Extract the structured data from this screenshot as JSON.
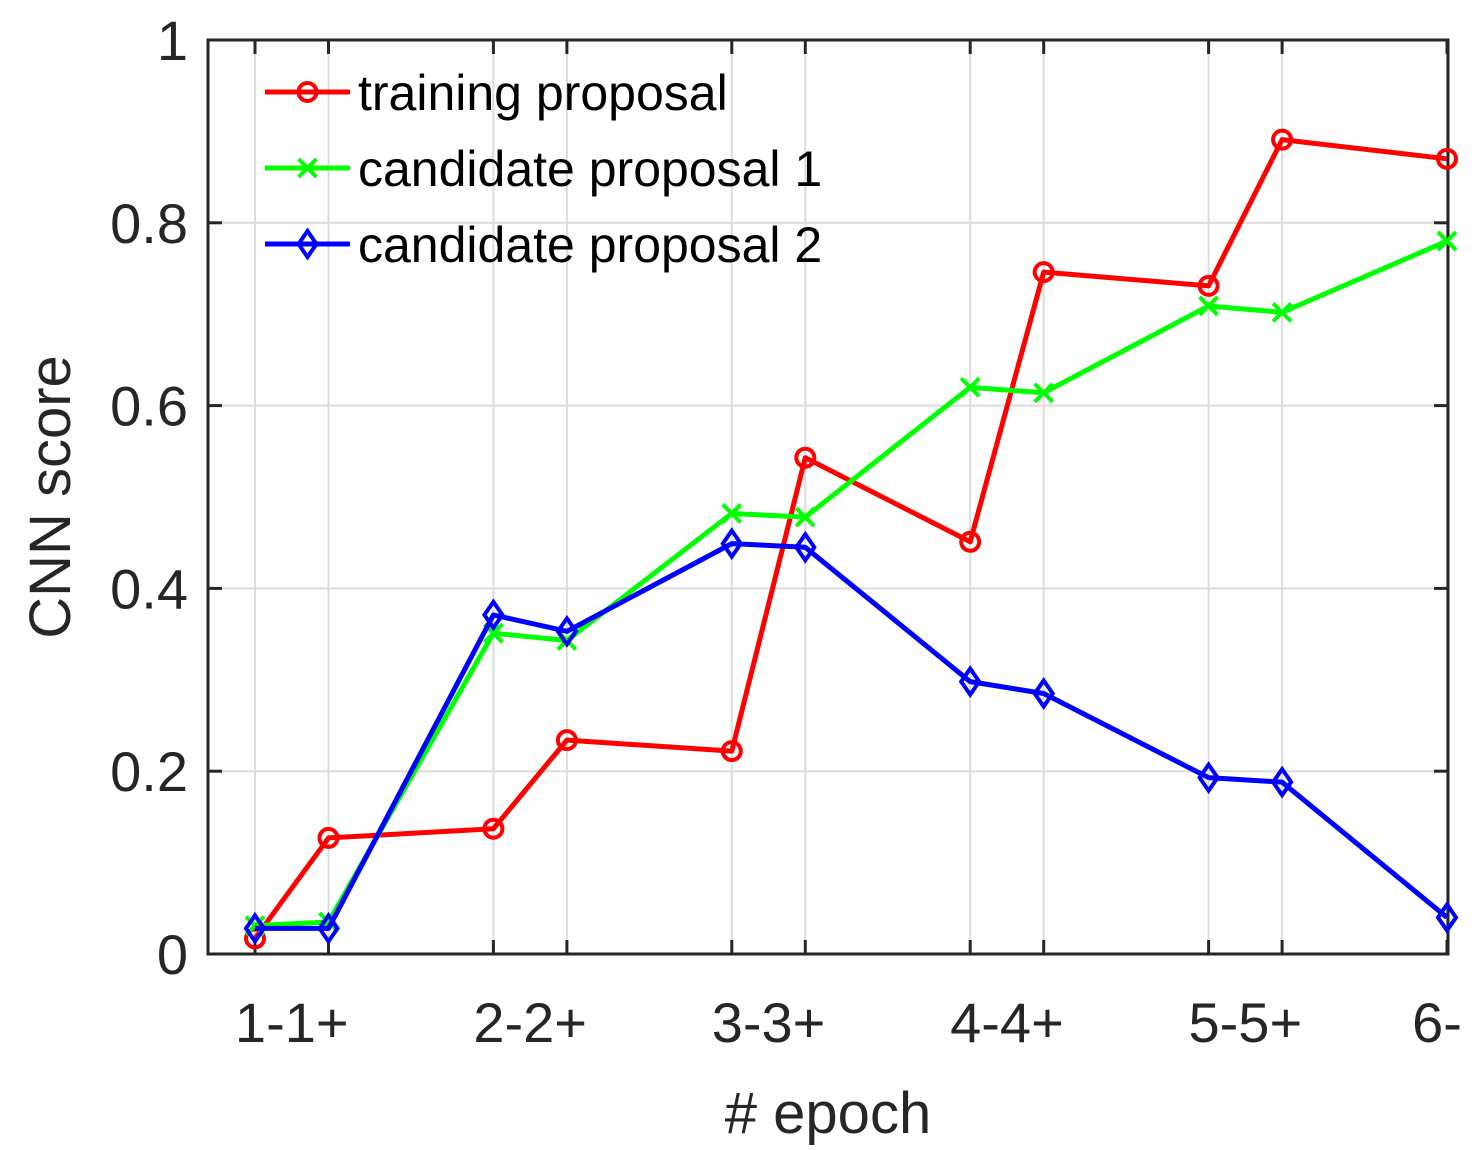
{
  "chart_data": {
    "type": "line",
    "title": "",
    "xlabel": "# epoch",
    "ylabel": "CNN score",
    "ylim": [
      0,
      1
    ],
    "y_ticks": [
      0,
      0.2,
      0.4,
      0.6,
      0.8,
      1
    ],
    "y_tick_labels": [
      "0",
      "0.2",
      "0.4",
      "0.6",
      "0.8",
      "1"
    ],
    "x_tick_labels": [
      "1-1+",
      "2-2+",
      "3-3+",
      "4-4+",
      "5-5+",
      "6-"
    ],
    "x_positions": [
      "1-",
      "1+",
      "2-",
      "2+",
      "3-",
      "3+",
      "4-",
      "4+",
      "5-",
      "5+",
      "6-"
    ],
    "grid": true,
    "legend_position": "top-left",
    "series": [
      {
        "name": "training proposal",
        "color": "#ff0000",
        "marker": "circle",
        "values": [
          0.017,
          0.127,
          0.137,
          0.234,
          0.222,
          0.543,
          0.451,
          0.746,
          0.731,
          0.891,
          0.87
        ]
      },
      {
        "name": "candidate proposal 1",
        "color": "#00ff00",
        "marker": "x",
        "values": [
          0.031,
          0.035,
          0.351,
          0.343,
          0.482,
          0.478,
          0.62,
          0.614,
          0.709,
          0.702,
          0.78
        ]
      },
      {
        "name": "candidate proposal 2",
        "color": "#0000ff",
        "marker": "diamond",
        "values": [
          0.028,
          0.028,
          0.371,
          0.353,
          0.449,
          0.445,
          0.298,
          0.285,
          0.193,
          0.188,
          0.04
        ]
      }
    ]
  }
}
